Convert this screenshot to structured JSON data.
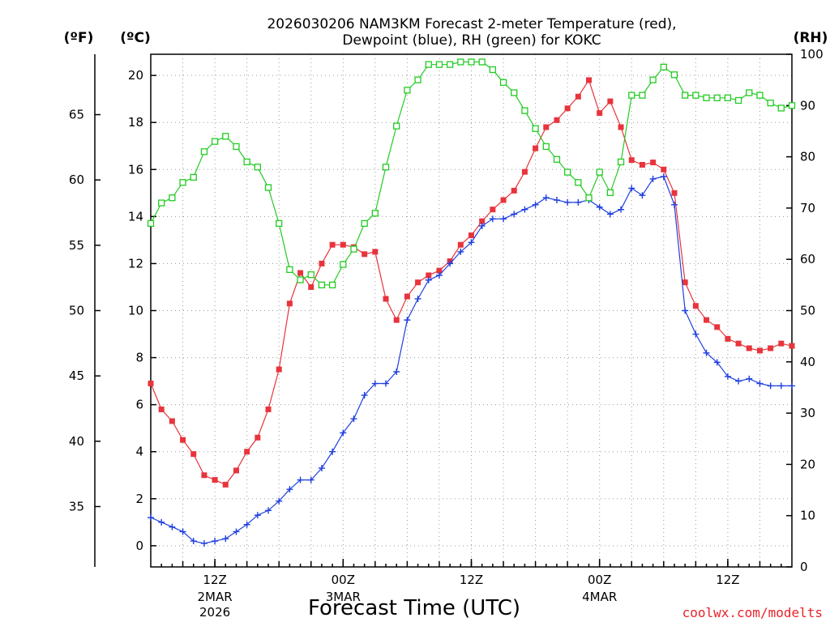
{
  "chart_data": {
    "type": "line",
    "title_line1": "2026030206 NAM3KM Forecast 2-meter Temperature (red),",
    "title_line2": "Dewpoint (blue), RH (green) for KOKC",
    "xlabel": "Forecast Time (UTC)",
    "credit": "coolwx.com/modelts",
    "units": {
      "fahrenheit": "(ºF)",
      "celsius": "(ºC)",
      "rh": "(RH)"
    },
    "x_hours_range": [
      0,
      60
    ],
    "celsius_range": [
      -0.9,
      20.9
    ],
    "rh_range": [
      0,
      100
    ],
    "celsius_ticks": [
      "0",
      "2",
      "4",
      "6",
      "8",
      "10",
      "12",
      "14",
      "16",
      "18",
      "20"
    ],
    "fahrenheit_ticks": [
      "35",
      "40",
      "45",
      "50",
      "55",
      "60",
      "65"
    ],
    "rh_ticks": [
      "0",
      "10",
      "20",
      "30",
      "40",
      "50",
      "60",
      "70",
      "80",
      "90",
      "100"
    ],
    "time_ticks": [
      {
        "hour": 6,
        "label": "12Z",
        "line2": "2MAR",
        "line3": "2026"
      },
      {
        "hour": 18,
        "label": "00Z",
        "line2": "3MAR",
        "line3": ""
      },
      {
        "hour": 30,
        "label": "12Z",
        "line2": "",
        "line3": ""
      },
      {
        "hour": 42,
        "label": "00Z",
        "line2": "4MAR",
        "line3": ""
      },
      {
        "hour": 54,
        "label": "12Z",
        "line2": "",
        "line3": ""
      }
    ],
    "colors": {
      "temperature": "#e8343c",
      "dewpoint": "#1f3fe0",
      "rh": "#22cc22"
    },
    "series": [
      {
        "name": "Temperature (°C)",
        "axis": "celsius",
        "values": [
          6.9,
          5.8,
          5.3,
          4.5,
          3.9,
          3.0,
          2.8,
          2.6,
          3.2,
          4.0,
          4.6,
          5.8,
          7.5,
          10.3,
          11.6,
          11.0,
          12.0,
          12.8,
          12.8,
          12.7,
          12.4,
          12.5,
          10.5,
          9.6,
          10.6,
          11.2,
          11.5,
          11.7,
          12.1,
          12.8,
          13.2,
          13.8,
          14.3,
          14.7,
          15.1,
          15.9,
          16.9,
          17.8,
          18.1,
          18.6,
          19.1,
          19.8,
          18.4,
          18.9,
          17.8,
          16.4,
          16.2,
          16.3,
          16.0,
          15.0,
          11.2,
          10.2,
          9.6,
          9.3,
          8.8,
          8.6,
          8.4,
          8.3,
          8.4,
          8.6,
          8.5
        ]
      },
      {
        "name": "Dewpoint (°C)",
        "axis": "celsius",
        "values": [
          1.2,
          1.0,
          0.8,
          0.6,
          0.2,
          0.1,
          0.2,
          0.3,
          0.6,
          0.9,
          1.3,
          1.5,
          1.9,
          2.4,
          2.8,
          2.8,
          3.3,
          4.0,
          4.8,
          5.4,
          6.4,
          6.9,
          6.9,
          7.4,
          9.6,
          10.5,
          11.3,
          11.5,
          12.0,
          12.5,
          12.9,
          13.6,
          13.9,
          13.9,
          14.1,
          14.3,
          14.5,
          14.8,
          14.7,
          14.6,
          14.6,
          14.7,
          14.4,
          14.1,
          14.3,
          15.2,
          14.9,
          15.6,
          15.7,
          14.5,
          10.0,
          9.0,
          8.2,
          7.8,
          7.2,
          7.0,
          7.1,
          6.9,
          6.8,
          6.8,
          6.8
        ]
      },
      {
        "name": "Relative Humidity (%)",
        "axis": "rh",
        "values": [
          67,
          71,
          72,
          75,
          76,
          81,
          83,
          84,
          82,
          79,
          78,
          74,
          67,
          58,
          56,
          57,
          55,
          55,
          59,
          62,
          67,
          69,
          78,
          86,
          93,
          95,
          98,
          98,
          98,
          98.5,
          98.5,
          98.5,
          97,
          94.5,
          92.5,
          89,
          85.5,
          82,
          79.5,
          77,
          75,
          72,
          77,
          73,
          79,
          92,
          92,
          95,
          97.5,
          96,
          92,
          92,
          91.5,
          91.5,
          91.5,
          91,
          92.5,
          92,
          90.5,
          89.5,
          90
        ]
      }
    ]
  }
}
